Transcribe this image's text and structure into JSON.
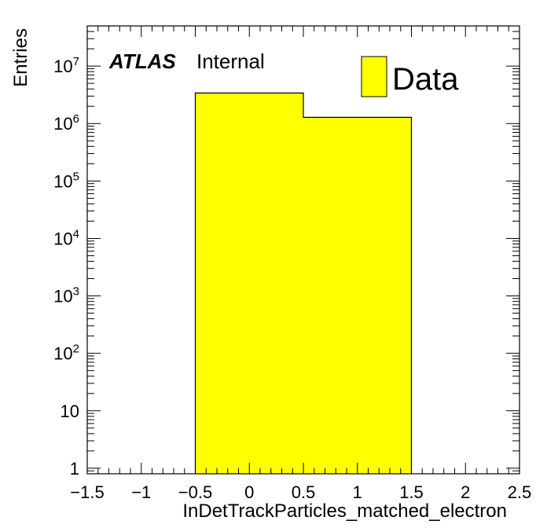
{
  "chart_data": {
    "type": "bar",
    "subtype": "histogram",
    "xlabel": "InDetTrackParticles_matched_electron",
    "ylabel": "Entries",
    "xlim": [
      -1.5,
      2.5
    ],
    "ylim": [
      0.8,
      50000000
    ],
    "yscale": "log",
    "x_ticks": [
      "−1.5",
      "−1",
      "−0.5",
      "0",
      "0.5",
      "1",
      "1.5",
      "2",
      "2.5"
    ],
    "y_ticks": [
      {
        "value": 1,
        "base": "1",
        "exp": ""
      },
      {
        "value": 10,
        "base": "10",
        "exp": ""
      },
      {
        "value": 100,
        "base": "10",
        "exp": "2"
      },
      {
        "value": 1000,
        "base": "10",
        "exp": "3"
      },
      {
        "value": 10000,
        "base": "10",
        "exp": "4"
      },
      {
        "value": 100000,
        "base": "10",
        "exp": "5"
      },
      {
        "value": 1000000,
        "base": "10",
        "exp": "6"
      },
      {
        "value": 10000000,
        "base": "10",
        "exp": "7"
      }
    ],
    "bins": [
      {
        "low": -0.5,
        "high": 0.5,
        "value": 3400000
      },
      {
        "low": 0.5,
        "high": 1.5,
        "value": 1280000
      }
    ],
    "series": [
      {
        "name": "Data",
        "color": "#ffff00"
      }
    ],
    "legend": {
      "position": "top-right"
    },
    "grid": false,
    "annotation": {
      "experiment": "ATLAS",
      "status": "Internal"
    }
  }
}
